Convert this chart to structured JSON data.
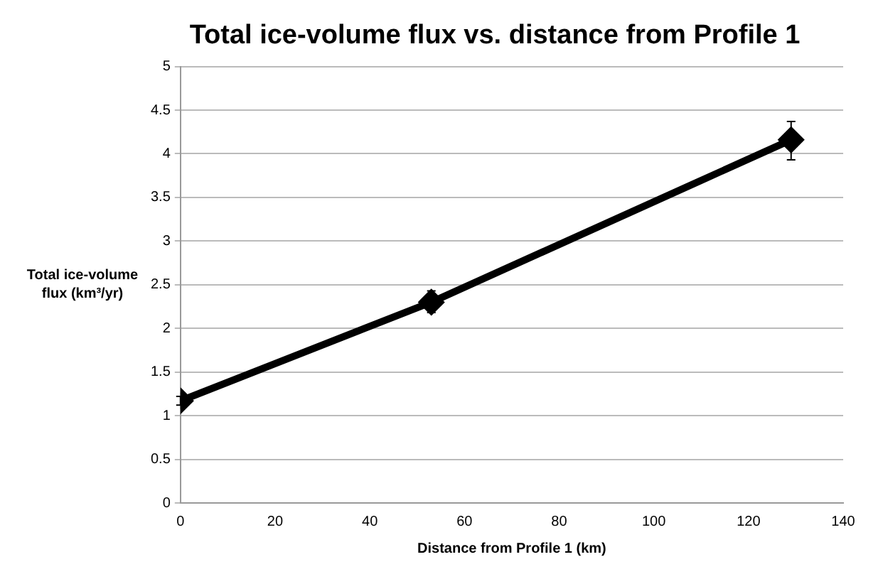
{
  "chart_data": {
    "type": "line",
    "title": "Total ice-volume flux vs. distance from Profile 1",
    "xlabel": "Distance from Profile 1 (km)",
    "ylabel": "Total ice-volume flux (km³/yr)",
    "x": [
      0,
      53,
      129
    ],
    "series": [
      {
        "color": "#000000",
        "values": [
          1.17,
          2.3,
          4.16
        ],
        "errors": [
          0.05,
          [
            2.18,
            2.43
          ],
          [
            3.93,
            4.37
          ]
        ]
      }
    ],
    "xlim": [
      0,
      140
    ],
    "xticks": [
      0,
      20,
      40,
      60,
      80,
      100,
      120,
      140
    ],
    "ylim": [
      0,
      5
    ],
    "yticks": [
      0,
      0.5,
      1,
      1.5,
      2,
      2.5,
      3,
      3.5,
      4,
      4.5,
      5
    ],
    "grid": "y",
    "legend": false,
    "marker": "diamond",
    "line_style": "solid"
  }
}
